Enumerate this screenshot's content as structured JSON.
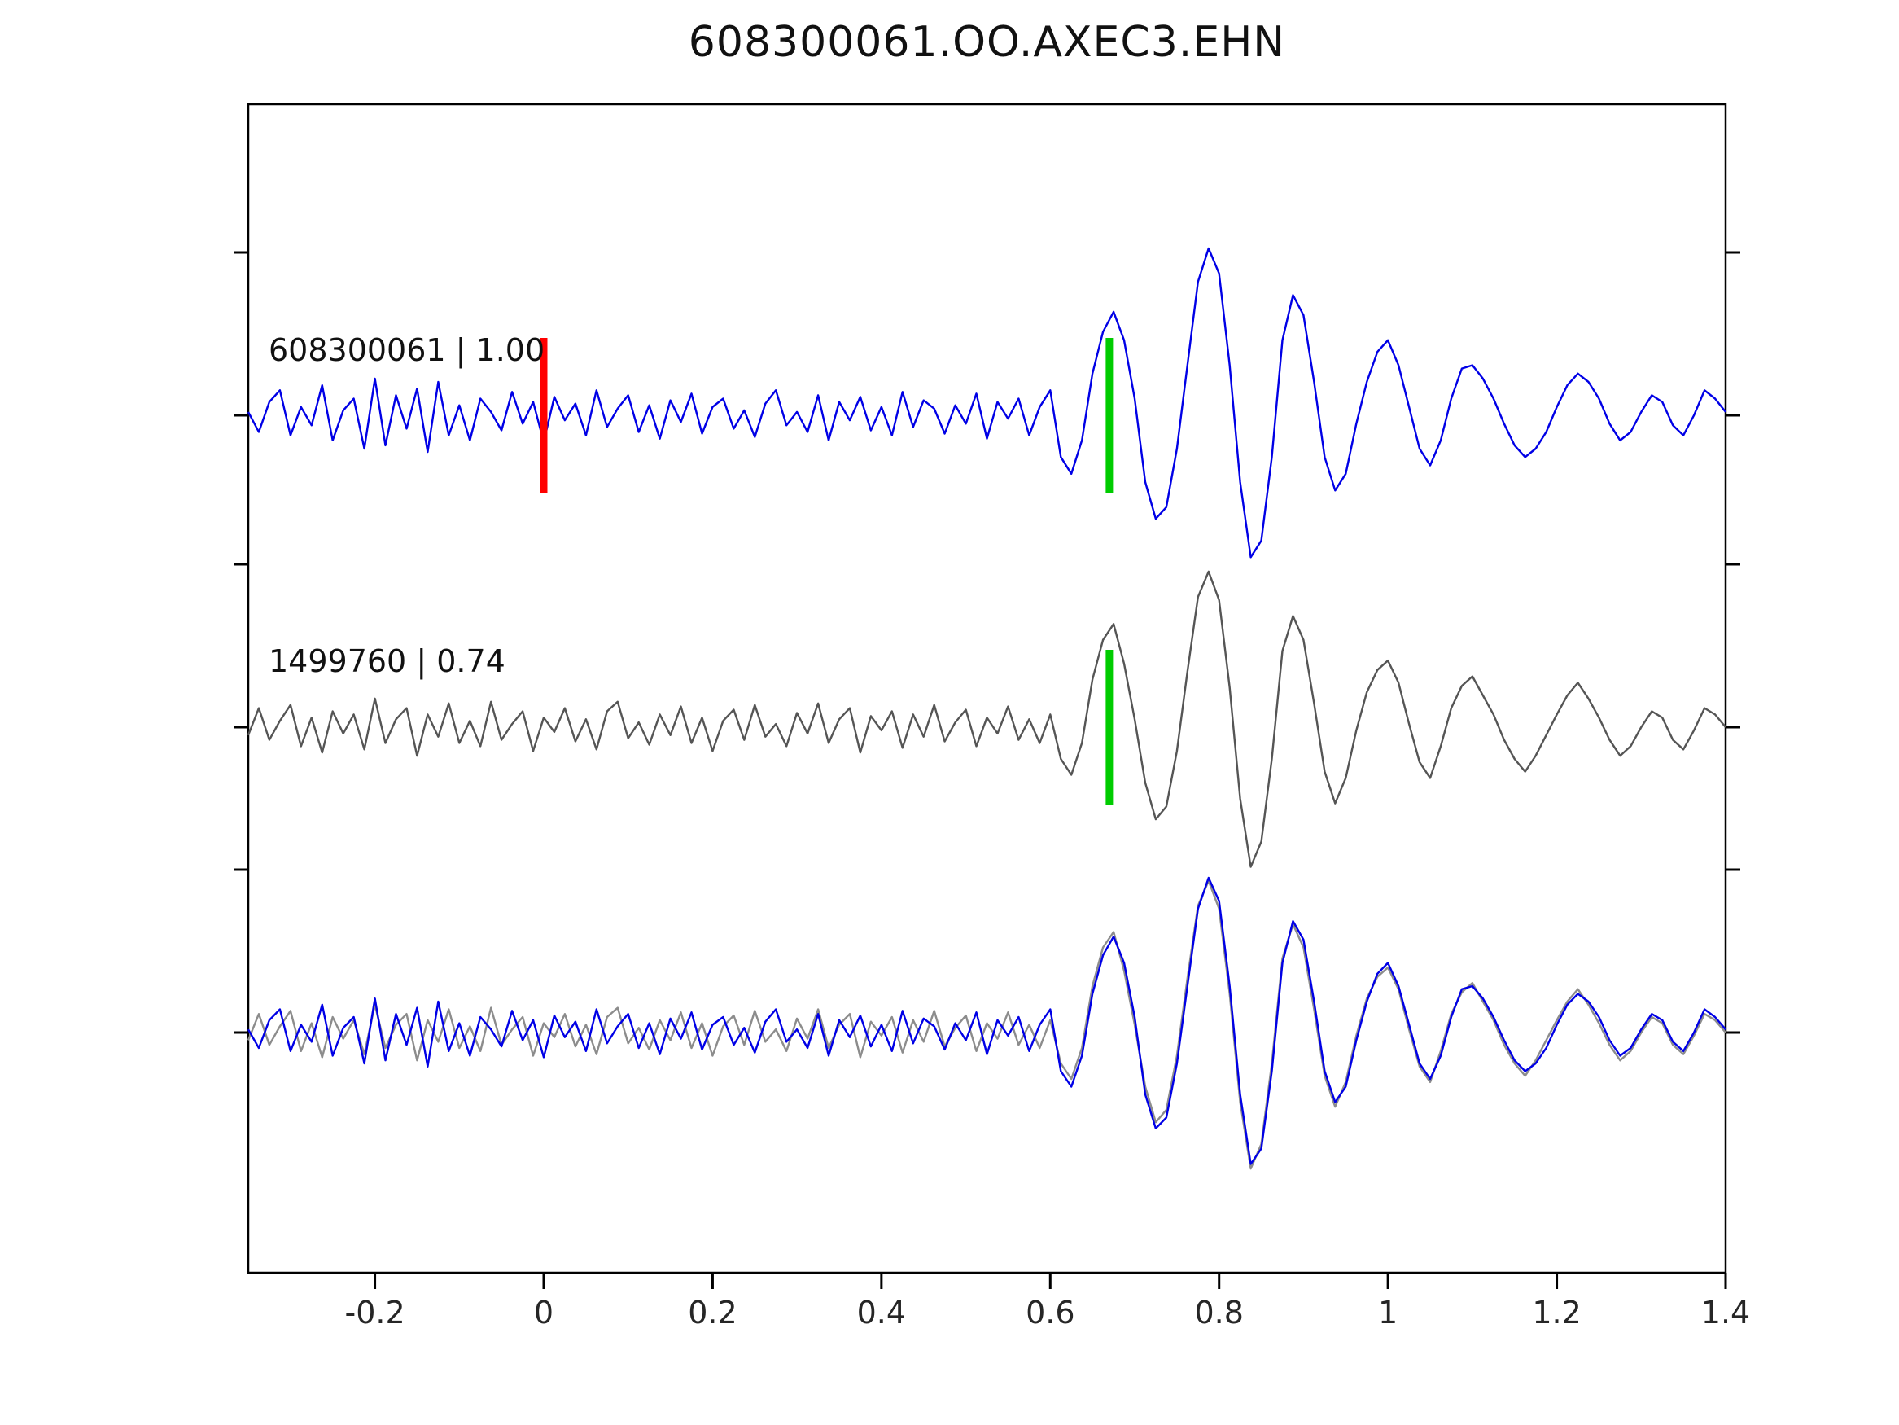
{
  "chart_data": {
    "type": "line",
    "title": "608300061.OO.AXEC3.EHN",
    "xlabel": "",
    "ylabel": "",
    "xlim": [
      -0.35,
      1.4
    ],
    "x_start": -0.35,
    "dt": 0.0125,
    "x_ticks": [
      -0.2,
      0,
      0.2,
      0.4,
      0.6,
      0.8,
      1,
      1.2,
      1.4
    ],
    "x_tick_labels": [
      "-0.2",
      "0",
      "0.2",
      "0.4",
      "0.6",
      "0.8",
      "1",
      "1.2",
      "1.4"
    ],
    "grid": false,
    "legend": "none",
    "rows": [
      "trace-608300061",
      "trace-1499760",
      "overlay-both"
    ],
    "series": [
      {
        "name": "608300061",
        "label": "608300061 | 1.00",
        "correlation": "1.00",
        "color": "#0000e6",
        "values": [
          0.02,
          -0.1,
          0.08,
          0.15,
          -0.12,
          0.05,
          -0.06,
          0.18,
          -0.15,
          0.03,
          0.1,
          -0.2,
          0.22,
          -0.18,
          0.12,
          -0.08,
          0.16,
          -0.22,
          0.2,
          -0.12,
          0.06,
          -0.15,
          0.1,
          0.02,
          -0.09,
          0.14,
          -0.05,
          0.08,
          -0.16,
          0.11,
          -0.03,
          0.07,
          -0.12,
          0.15,
          -0.07,
          0.04,
          0.12,
          -0.1,
          0.06,
          -0.14,
          0.09,
          -0.04,
          0.13,
          -0.11,
          0.05,
          0.1,
          -0.08,
          0.03,
          -0.13,
          0.07,
          0.15,
          -0.06,
          0.02,
          -0.1,
          0.12,
          -0.15,
          0.08,
          -0.03,
          0.11,
          -0.09,
          0.05,
          -0.12,
          0.14,
          -0.07,
          0.09,
          0.04,
          -0.11,
          0.06,
          -0.05,
          0.13,
          -0.14,
          0.08,
          -0.02,
          0.1,
          -0.12,
          0.05,
          0.15,
          -0.25,
          -0.35,
          -0.15,
          0.25,
          0.5,
          0.62,
          0.45,
          0.1,
          -0.4,
          -0.62,
          -0.55,
          -0.2,
          0.3,
          0.8,
          1.0,
          0.85,
          0.3,
          -0.4,
          -0.85,
          -0.75,
          -0.25,
          0.45,
          0.72,
          0.6,
          0.2,
          -0.25,
          -0.45,
          -0.35,
          -0.05,
          0.2,
          0.38,
          0.45,
          0.3,
          0.05,
          -0.2,
          -0.3,
          -0.15,
          0.1,
          0.28,
          0.3,
          0.22,
          0.1,
          -0.05,
          -0.18,
          -0.25,
          -0.2,
          -0.1,
          0.05,
          0.18,
          0.25,
          0.2,
          0.1,
          -0.05,
          -0.15,
          -0.1,
          0.02,
          0.12,
          0.08,
          -0.06,
          -0.12,
          0.0,
          0.15,
          0.1,
          0.02
        ]
      },
      {
        "name": "1499760",
        "label": "1499760 | 0.74",
        "correlation": "0.74",
        "color": "#555555",
        "values": [
          -0.05,
          0.12,
          -0.08,
          0.04,
          0.14,
          -0.12,
          0.06,
          -0.16,
          0.1,
          -0.04,
          0.08,
          -0.14,
          0.18,
          -0.1,
          0.05,
          0.12,
          -0.18,
          0.08,
          -0.06,
          0.15,
          -0.1,
          0.04,
          -0.12,
          0.16,
          -0.08,
          0.02,
          0.1,
          -0.15,
          0.06,
          -0.03,
          0.12,
          -0.09,
          0.05,
          -0.14,
          0.1,
          0.16,
          -0.07,
          0.03,
          -0.11,
          0.08,
          -0.05,
          0.13,
          -0.1,
          0.06,
          -0.15,
          0.04,
          0.11,
          -0.08,
          0.14,
          -0.06,
          0.02,
          -0.12,
          0.09,
          -0.04,
          0.15,
          -0.1,
          0.05,
          0.12,
          -0.16,
          0.07,
          -0.02,
          0.1,
          -0.13,
          0.08,
          -0.06,
          0.14,
          -0.09,
          0.03,
          0.11,
          -0.12,
          0.06,
          -0.04,
          0.13,
          -0.08,
          0.05,
          -0.1,
          0.08,
          -0.2,
          -0.3,
          -0.1,
          0.3,
          0.55,
          0.65,
          0.4,
          0.05,
          -0.35,
          -0.58,
          -0.5,
          -0.15,
          0.35,
          0.82,
          0.98,
          0.8,
          0.25,
          -0.45,
          -0.88,
          -0.72,
          -0.2,
          0.48,
          0.7,
          0.55,
          0.15,
          -0.28,
          -0.48,
          -0.32,
          -0.02,
          0.22,
          0.36,
          0.42,
          0.28,
          0.02,
          -0.22,
          -0.32,
          -0.12,
          0.12,
          0.26,
          0.32,
          0.2,
          0.08,
          -0.08,
          -0.2,
          -0.28,
          -0.18,
          -0.05,
          0.08,
          0.2,
          0.28,
          0.18,
          0.06,
          -0.08,
          -0.18,
          -0.12,
          0.0,
          0.1,
          0.06,
          -0.08,
          -0.14,
          -0.02,
          0.12,
          0.08,
          0.0
        ]
      }
    ],
    "overlay": {
      "order": [
        1,
        0
      ],
      "colors": [
        "#8c8c8c",
        "#0000e6"
      ]
    },
    "markers": [
      {
        "trace": 0,
        "x": 0.0,
        "color": "#ff0000",
        "name": "reference-pick-red"
      },
      {
        "trace": 0,
        "x": 0.67,
        "color": "#00cc00",
        "name": "pick-green-trace-1"
      },
      {
        "trace": 1,
        "x": 0.67,
        "color": "#00cc00",
        "name": "pick-green-trace-2"
      }
    ],
    "axis_color": "#000000"
  }
}
